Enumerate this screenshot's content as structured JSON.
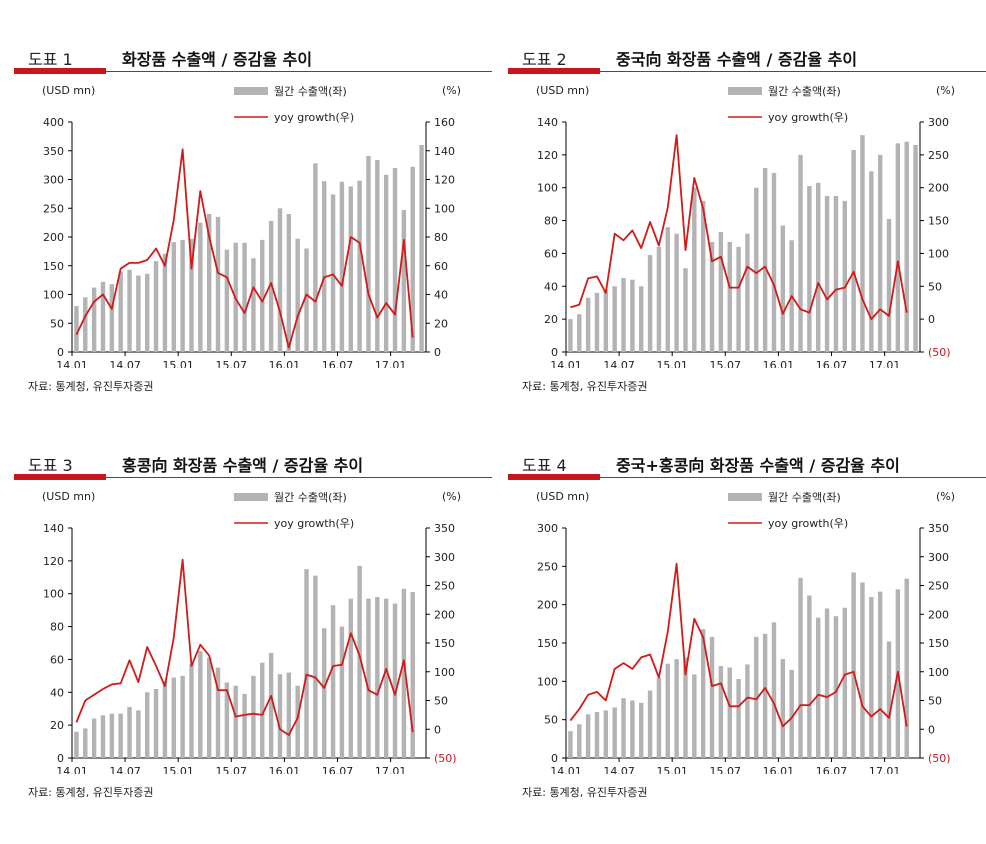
{
  "panels": [
    {
      "fig_label": "도표 1",
      "title": "화장품 수출액 / 증감율 추이",
      "source": "자료: 통계청, 유진투자증권",
      "chart_data": {
        "type": "bar+line",
        "left_axis_label": "(USD mn)",
        "right_axis_label": "(%)",
        "legend_bar": "월간 수출액(좌)",
        "legend_line": "yoy growth(우)",
        "x_ticks": [
          "14.01",
          "14.07",
          "15.01",
          "15.07",
          "16.01",
          "16.07",
          "17.01"
        ],
        "y_left": {
          "min": 0,
          "max": 400,
          "ticks": [
            0,
            50,
            100,
            150,
            200,
            250,
            300,
            350,
            400
          ]
        },
        "y_right": {
          "min": 0,
          "max": 160,
          "ticks": [
            0,
            20,
            40,
            60,
            80,
            100,
            120,
            140,
            160
          ],
          "labels": [
            "0",
            "20",
            "40",
            "60",
            "80",
            "100",
            "120",
            "140",
            "160"
          ]
        },
        "bars": [
          80,
          95,
          112,
          122,
          118,
          140,
          143,
          133,
          136,
          158,
          171,
          191,
          195,
          197,
          225,
          240,
          235,
          178,
          190,
          190,
          163,
          195,
          228,
          250,
          240,
          197,
          180,
          328,
          297,
          274,
          296,
          288,
          298,
          341,
          334,
          308,
          320,
          247,
          322,
          360
        ],
        "line": [
          12,
          25,
          35,
          40,
          30,
          58,
          62,
          62,
          64,
          72,
          60,
          92,
          141,
          58,
          112,
          80,
          55,
          52,
          37,
          27,
          45,
          35,
          48,
          28,
          3,
          25,
          40,
          35,
          52,
          54,
          46,
          80,
          76,
          40,
          24,
          34,
          26,
          78,
          10
        ]
      }
    },
    {
      "fig_label": "도표 2",
      "title": "중국向 화장품 수출액 / 증감율 추이",
      "source": "자료: 통계청, 유진투자증권",
      "chart_data": {
        "type": "bar+line",
        "left_axis_label": "(USD mn)",
        "right_axis_label": "(%)",
        "legend_bar": "월간 수출액(좌)",
        "legend_line": "yoy growth(우)",
        "x_ticks": [
          "14.01",
          "14.07",
          "15.01",
          "15.07",
          "16.01",
          "16.07",
          "17.01"
        ],
        "y_left": {
          "min": 0,
          "max": 140,
          "ticks": [
            0,
            20,
            40,
            60,
            80,
            100,
            120,
            140
          ]
        },
        "y_right": {
          "min": -50,
          "max": 300,
          "ticks": [
            -50,
            0,
            50,
            100,
            150,
            200,
            250,
            300
          ],
          "labels": [
            "(50)",
            "0",
            "50",
            "100",
            "150",
            "200",
            "250",
            "300"
          ]
        },
        "bars": [
          20,
          23,
          33,
          36,
          38,
          40,
          45,
          44,
          40,
          59,
          64,
          76,
          72,
          51,
          100,
          92,
          67,
          73,
          67,
          64,
          72,
          100,
          112,
          109,
          77,
          68,
          120,
          101,
          103,
          95,
          95,
          92,
          123,
          132,
          110,
          120,
          81,
          127,
          128,
          126
        ],
        "line": [
          18,
          22,
          62,
          65,
          40,
          130,
          120,
          135,
          108,
          148,
          112,
          170,
          280,
          105,
          215,
          168,
          88,
          95,
          48,
          48,
          80,
          70,
          80,
          52,
          8,
          35,
          15,
          10,
          55,
          30,
          45,
          48,
          72,
          30,
          0,
          15,
          5,
          88,
          10
        ]
      }
    },
    {
      "fig_label": "도표 3",
      "title": "홍콩向 화장품 수출액 / 증감율 추이",
      "source": "자료: 통계청, 유진투자증권",
      "chart_data": {
        "type": "bar+line",
        "left_axis_label": "(USD mn)",
        "right_axis_label": "(%)",
        "legend_bar": "월간 수출액(좌)",
        "legend_line": "yoy growth(우)",
        "x_ticks": [
          "14.01",
          "14.07",
          "15.01",
          "15.07",
          "16.01",
          "16.07",
          "17.01"
        ],
        "y_left": {
          "min": 0,
          "max": 140,
          "ticks": [
            0,
            20,
            40,
            60,
            80,
            100,
            120,
            140
          ]
        },
        "y_right": {
          "min": -50,
          "max": 350,
          "ticks": [
            -50,
            0,
            50,
            100,
            150,
            200,
            250,
            300,
            350
          ],
          "labels": [
            "(50)",
            "0",
            "50",
            "100",
            "150",
            "200",
            "250",
            "300",
            "350"
          ]
        },
        "bars": [
          16,
          18,
          24,
          26,
          27,
          27,
          31,
          29,
          40,
          42,
          47,
          49,
          50,
          57,
          65,
          61,
          55,
          46,
          44,
          39,
          50,
          58,
          64,
          51,
          52,
          44,
          115,
          111,
          79,
          93,
          80,
          97,
          117,
          97,
          98,
          97,
          94,
          103,
          101
        ],
        "line": [
          12,
          50,
          60,
          70,
          78,
          80,
          120,
          82,
          143,
          110,
          75,
          160,
          295,
          110,
          147,
          128,
          68,
          68,
          22,
          25,
          27,
          25,
          58,
          0,
          -10,
          20,
          95,
          90,
          72,
          110,
          112,
          167,
          128,
          68,
          60,
          105,
          60,
          120,
          -5
        ]
      }
    },
    {
      "fig_label": "도표 4",
      "title": "중국+홍콩向 화장품 수출액 / 증감율 추이",
      "source": "자료: 통계청, 유진투자증권",
      "chart_data": {
        "type": "bar+line",
        "left_axis_label": "(USD mn)",
        "right_axis_label": "(%)",
        "legend_bar": "월간 수출액(좌)",
        "legend_line": "yoy growth(우)",
        "x_ticks": [
          "14.01",
          "14.07",
          "15.01",
          "15.07",
          "16.01",
          "16.07",
          "17.01"
        ],
        "y_left": {
          "min": 0,
          "max": 300,
          "ticks": [
            0,
            50,
            100,
            150,
            200,
            250,
            300
          ]
        },
        "y_right": {
          "min": -50,
          "max": 350,
          "ticks": [
            -50,
            0,
            50,
            100,
            150,
            200,
            250,
            300,
            350
          ],
          "labels": [
            "(50)",
            "0",
            "50",
            "100",
            "150",
            "200",
            "250",
            "300",
            "350"
          ]
        },
        "bars": [
          35,
          44,
          57,
          60,
          62,
          66,
          78,
          75,
          72,
          88,
          105,
          123,
          129,
          131,
          109,
          168,
          158,
          120,
          118,
          103,
          122,
          158,
          162,
          177,
          129,
          115,
          235,
          212,
          183,
          195,
          185,
          196,
          242,
          229,
          210,
          217,
          152,
          220,
          234
        ],
        "line": [
          15,
          35,
          60,
          65,
          50,
          105,
          115,
          105,
          125,
          130,
          90,
          170,
          288,
          95,
          192,
          160,
          75,
          80,
          40,
          40,
          55,
          52,
          72,
          45,
          5,
          20,
          42,
          42,
          60,
          56,
          65,
          95,
          100,
          40,
          22,
          35,
          20,
          100,
          5
        ]
      }
    }
  ]
}
